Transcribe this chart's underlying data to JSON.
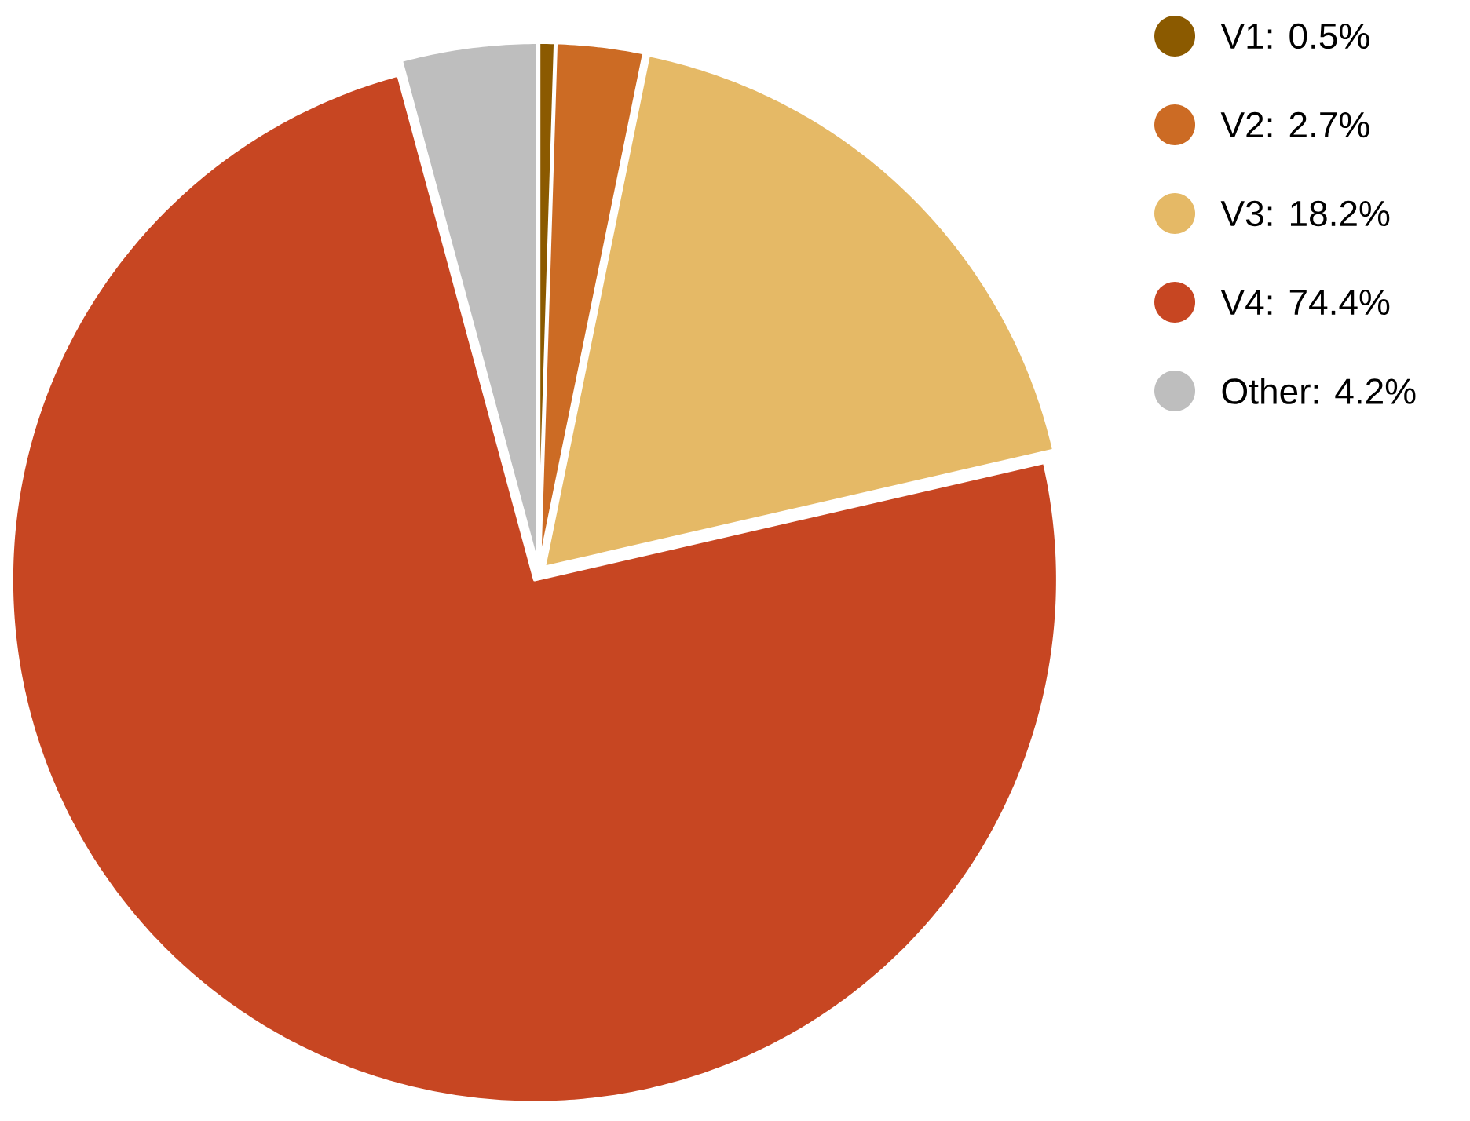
{
  "chart_data": {
    "type": "pie",
    "categories": [
      "V1: 0.5%",
      "V2: 2.7%",
      "V3: 18.2%",
      "V4: 74.4%",
      "Other: 4.2%"
    ],
    "values": [
      0.5,
      2.7,
      18.2,
      74.4,
      4.2
    ],
    "colors": [
      "#8b5a00",
      "#cc6b24",
      "#e5b966",
      "#c74622",
      "#bebebe"
    ],
    "legend": "top right"
  }
}
